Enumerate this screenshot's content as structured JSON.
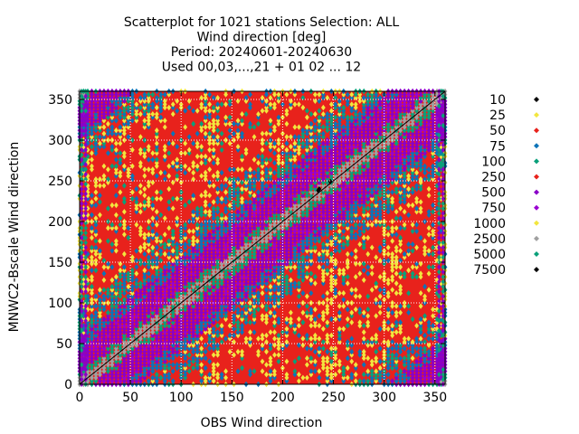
{
  "chart_data": {
    "type": "scatter",
    "title": [
      "Scatterplot for 1021 stations Selection: ALL",
      "Wind direction [deg]",
      "Period: 20240601-20240630",
      "Used 00,03,...,21 + 01 02 ... 12"
    ],
    "xlabel": "OBS Wind direction",
    "ylabel": "MNWC2-Bscale Wind direction",
    "xlim": [
      0,
      360
    ],
    "ylim": [
      0,
      360
    ],
    "xticks": [
      "0",
      "50",
      "100",
      "150",
      "200",
      "250",
      "300",
      "350"
    ],
    "yticks": [
      "0",
      "50",
      "100",
      "150",
      "200",
      "250",
      "300",
      "350"
    ],
    "diagonal_line": true,
    "grid": "dotted",
    "legend_placement": "right",
    "series": [
      {
        "name": "10",
        "color": "#000000"
      },
      {
        "name": "25",
        "color": "#f2e63e"
      },
      {
        "name": "50",
        "color": "#e8221c"
      },
      {
        "name": "75",
        "color": "#0c74b8"
      },
      {
        "name": "100",
        "color": "#0aa07a"
      },
      {
        "name": "250",
        "color": "#e8221c"
      },
      {
        "name": "500",
        "color": "#8a00c8"
      },
      {
        "name": "750",
        "color": "#9a00d2"
      },
      {
        "name": "1000",
        "color": "#f2e63e"
      },
      {
        "name": "2500",
        "color": "#a0a0a0"
      },
      {
        "name": "5000",
        "color": "#0aa07a"
      },
      {
        "name": "7500",
        "color": "#000000"
      }
    ]
  }
}
